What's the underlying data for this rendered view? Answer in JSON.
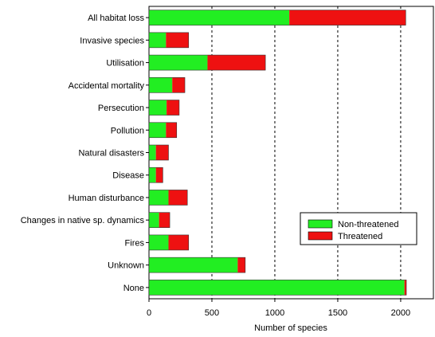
{
  "chart_data": {
    "type": "bar",
    "orientation": "horizontal",
    "stacked": true,
    "title": "",
    "xlabel": "Number of species",
    "ylabel": "",
    "xlim": [
      0,
      2260
    ],
    "xticks": [
      0,
      500,
      1000,
      1500,
      2000
    ],
    "grid": "vertical dashed lines",
    "legend_position": "right",
    "categories": [
      "All habitat loss",
      "Invasive species",
      "Utilisation",
      "Accidental mortality",
      "Persecution",
      "Pollution",
      "Natural disasters",
      "Disease",
      "Human disturbance",
      "Changes in native sp. dynamics",
      "Fires",
      "Unknown",
      "None"
    ],
    "series": [
      {
        "name": "Non-threatened",
        "color": "#22ee22",
        "values": [
          1115,
          135,
          465,
          185,
          140,
          135,
          55,
          55,
          155,
          80,
          155,
          705,
          2030
        ]
      },
      {
        "name": "Threatened",
        "color": "#ee1111",
        "values": [
          925,
          180,
          460,
          100,
          100,
          85,
          100,
          55,
          150,
          85,
          160,
          60,
          15
        ]
      }
    ]
  }
}
